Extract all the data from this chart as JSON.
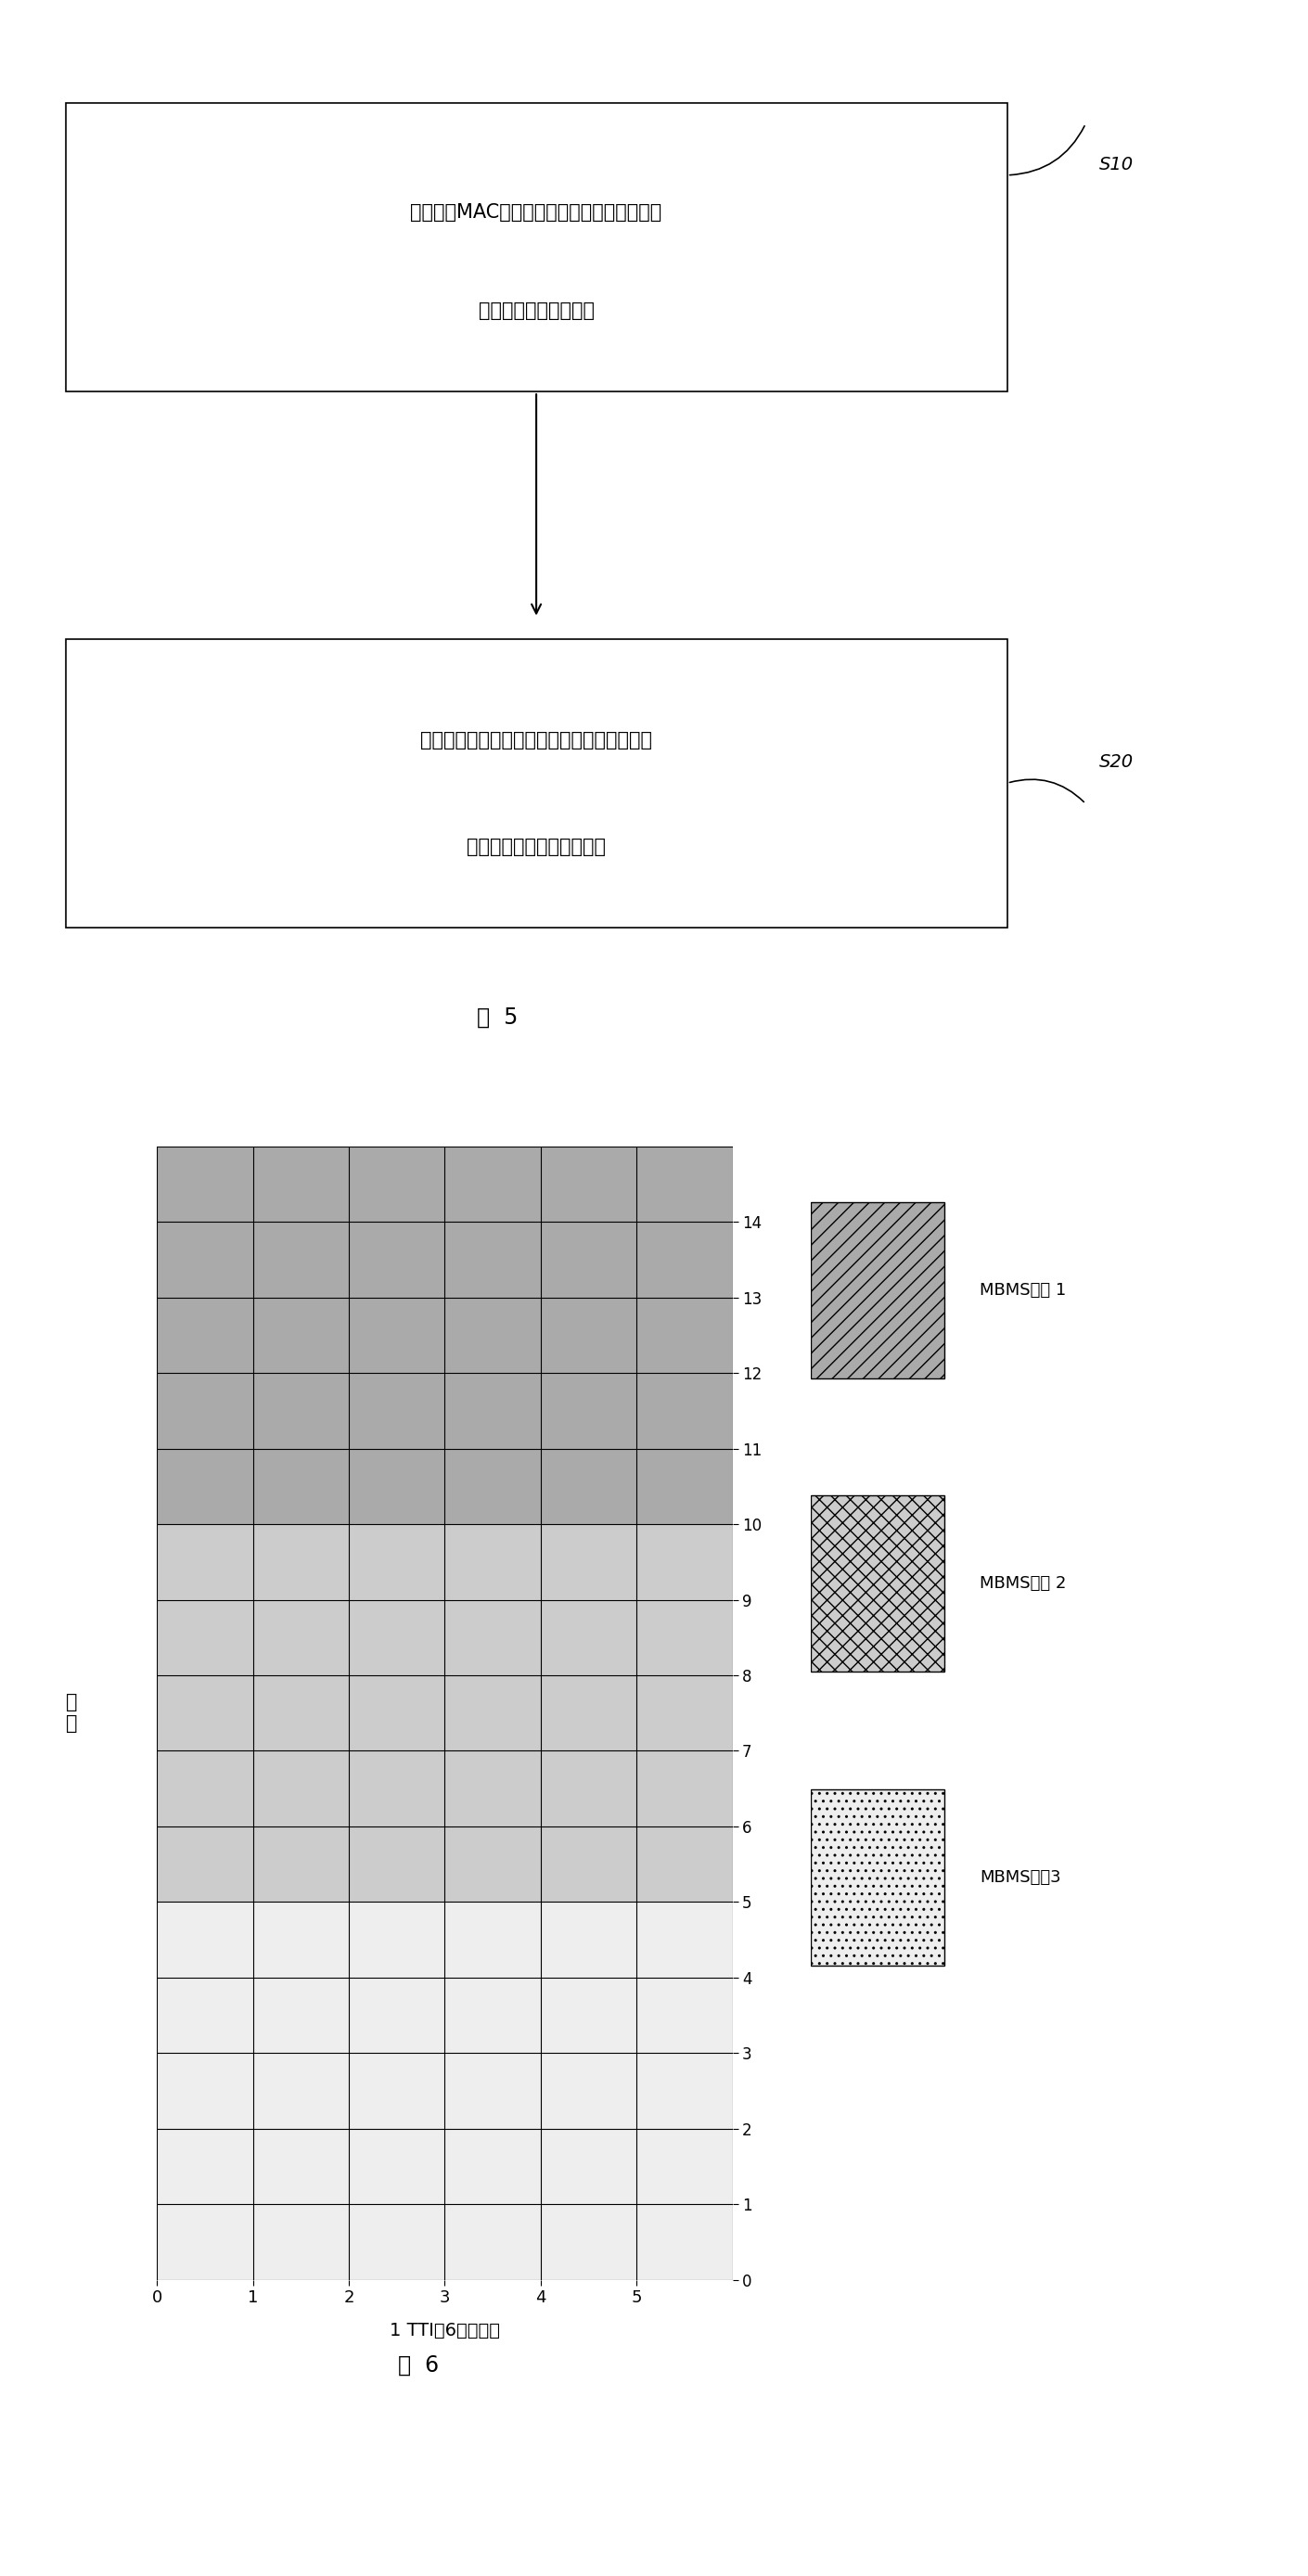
{
  "fig_width": 14.1,
  "fig_height": 27.77,
  "background_color": "#ffffff",
  "flowchart": {
    "box1_text_line1": "网络侧将MAC层处理之后的各个广播组播业务",
    "box1_text_line2": "数据分别传送到物理层",
    "box1_label": "S10",
    "box2_text_line1": "由物理层根据相应的复用控制信息对各个广播",
    "box2_text_line2": "组播业务数据执行复用处理",
    "box2_label": "S20",
    "fig5_label": "图  5"
  },
  "grid_chart": {
    "cols": 6,
    "rows": 15,
    "xlabel": "1 TTI（6个符号）",
    "ylabel": "频\n率",
    "service1_rows": [
      10,
      11,
      12,
      13,
      14
    ],
    "service2_rows": [
      5,
      6,
      7,
      8,
      9
    ],
    "service3_rows": [
      0,
      1,
      2,
      3,
      4
    ],
    "service1_color": "#c0c0c0",
    "service2_color": "#d0d0d0",
    "service3_color": "#eeeeee",
    "legend_labels": [
      "MBMS业务 1",
      "MBMS业务 2",
      "MBMS业务3"
    ],
    "fig6_label": "图  6"
  }
}
